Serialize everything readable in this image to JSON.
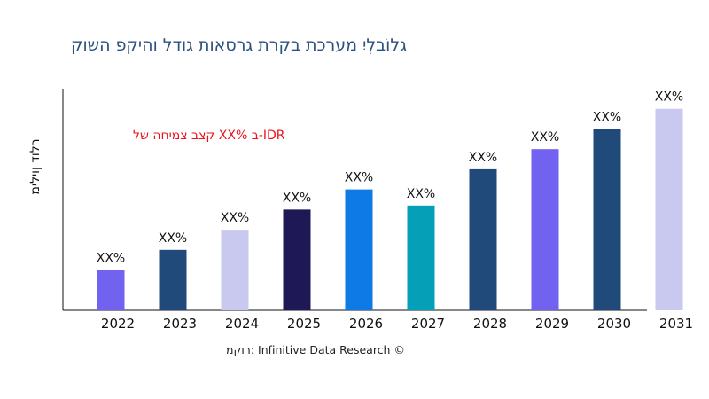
{
  "chart_data": {
    "type": "bar",
    "title": "קושה פקיהו לדוג תואסרג תרקב תכרעמ יִלְבוֹלג",
    "annotation": "לש החימצ בצק XX% ב-IDR",
    "ylabel": "מיליון דולר",
    "xlabel": "",
    "categories": [
      "2022",
      "2023",
      "2024",
      "2025",
      "2026",
      "2027",
      "2028",
      "2029",
      "2030",
      "2031"
    ],
    "values": [
      20,
      30,
      40,
      50,
      60,
      52,
      70,
      80,
      90,
      100
    ],
    "data_labels": [
      "XX%",
      "XX%",
      "XX%",
      "XX%",
      "XX%",
      "XX%",
      "XX%",
      "XX%",
      "XX%",
      "XX%"
    ],
    "colors": [
      "#7163f0",
      "#1f4a7a",
      "#c9c9ef",
      "#1e1856",
      "#0d7ae6",
      "#05a0b8",
      "#1f4a7a",
      "#7163f0",
      "#1f4a7a",
      "#c9c9ef"
    ],
    "ylim": [
      0,
      110
    ],
    "grid": false,
    "legend": "none"
  },
  "source": "רוקמ: Infinitive Data Research ©"
}
